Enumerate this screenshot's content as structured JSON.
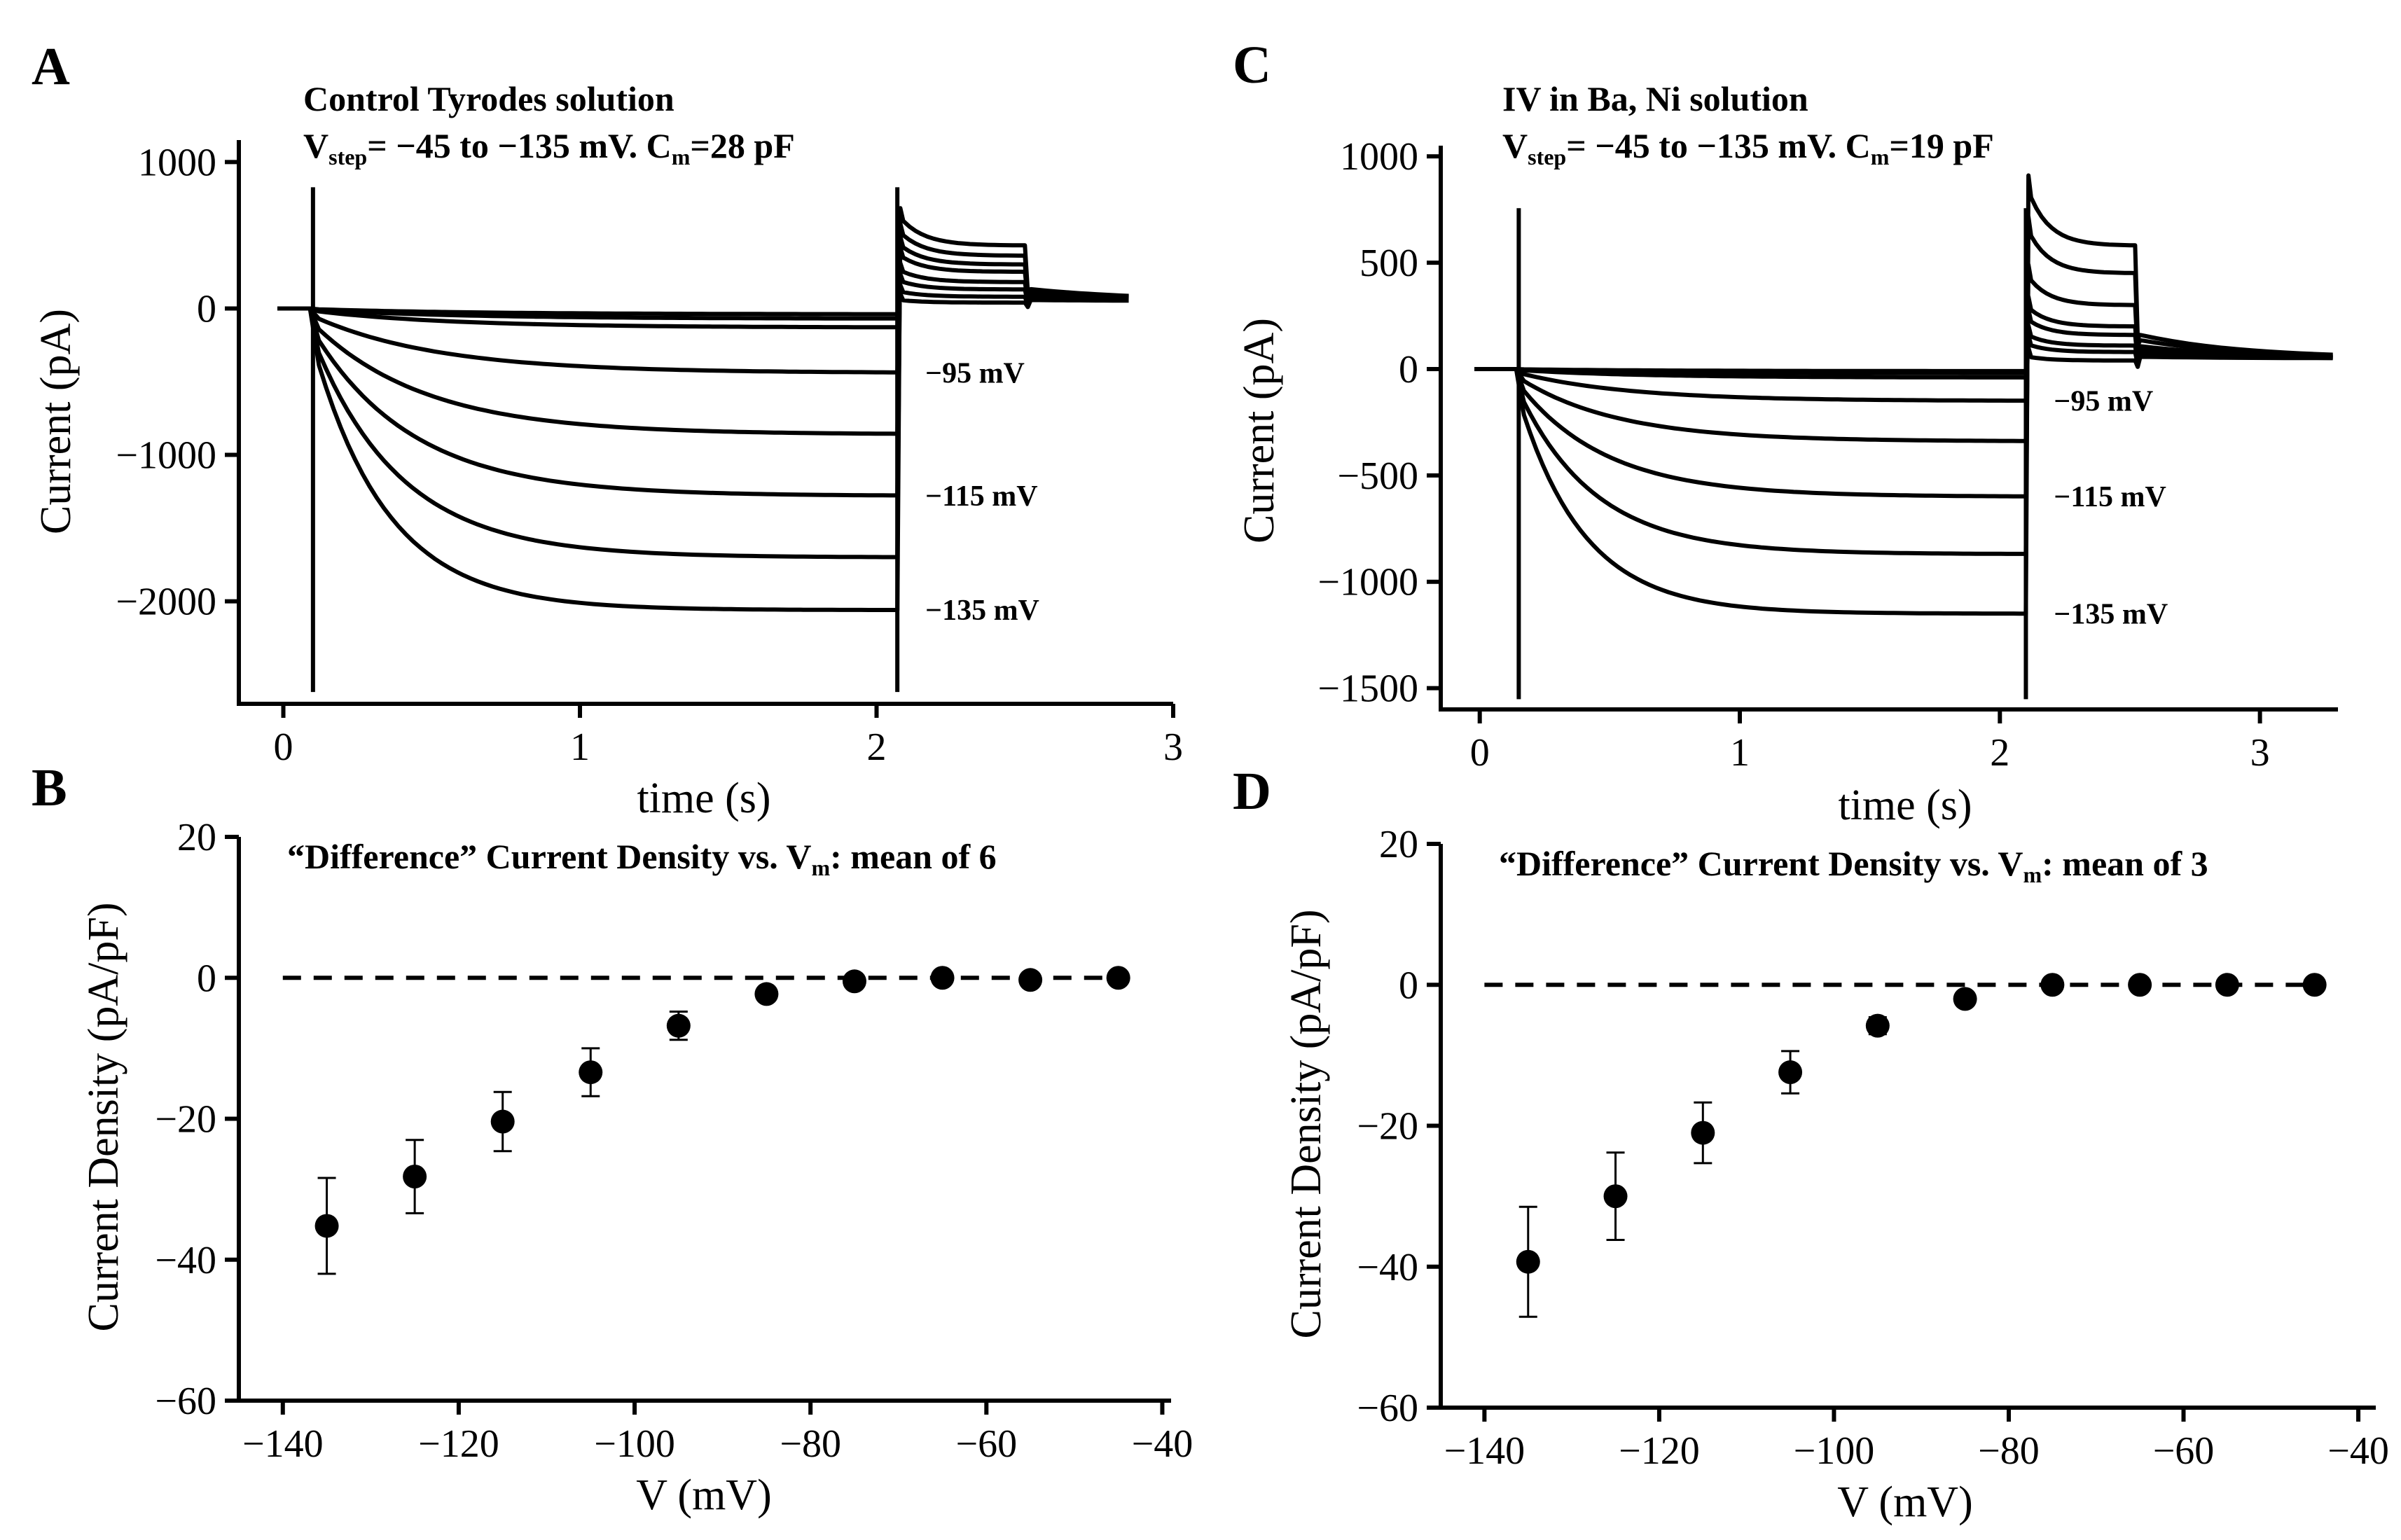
{
  "chart_data": [
    {
      "panel": "A",
      "type": "line",
      "title_line1": "Control Tyrodes solution",
      "title_line2": {
        "v": "V",
        "v_sub": "step",
        "mid": "= −45 to −135 mV. C",
        "c_sub": "m",
        "end": "=28 pF"
      },
      "xlabel": "time (s)",
      "ylabel": "Current (pA)",
      "xlim": [
        -0.15,
        3.0
      ],
      "ylim": [
        -2700,
        1150
      ],
      "xticks": [
        0,
        1,
        2,
        3
      ],
      "yticks": [
        1000,
        0,
        -1000,
        -2000
      ],
      "step_start": 0.1,
      "step_end": 2.07,
      "tail_end": 2.5,
      "trace_end": 2.85,
      "steady_values": [
        -40,
        -70,
        -130,
        -440,
        -860,
        -1280,
        -1700,
        -2060
      ],
      "tail_values": [
        40,
        80,
        130,
        180,
        250,
        300,
        360,
        430
      ],
      "trace_labels": [
        {
          "text": "−95 mV",
          "value": -440
        },
        {
          "text": "−115 mV",
          "value": -1280
        },
        {
          "text": "−135 mV",
          "value": -2060
        }
      ]
    },
    {
      "panel": "C",
      "type": "line",
      "title_line1": "IV in Ba, Ni solution",
      "title_line2": {
        "v": "V",
        "v_sub": "step",
        "mid": "= −45 to −135 mV. C",
        "c_sub": "m",
        "end": "=19 pF"
      },
      "xlabel": "time (s)",
      "ylabel": "Current (pA)",
      "xlim": [
        -0.15,
        3.3
      ],
      "ylim": [
        -1600,
        1050
      ],
      "xticks": [
        0,
        1,
        2,
        3
      ],
      "yticks": [
        1000,
        500,
        0,
        -500,
        -1000,
        -1500
      ],
      "step_start": 0.15,
      "step_end": 2.1,
      "tail_end": 2.52,
      "trace_end": 3.28,
      "steady_values": [
        -10,
        -20,
        -40,
        -150,
        -340,
        -600,
        -870,
        -1150
      ],
      "tail_values": [
        40,
        80,
        110,
        160,
        200,
        300,
        450,
        580
      ],
      "trace_labels": [
        {
          "text": "−95 mV",
          "value": -150
        },
        {
          "text": "−115 mV",
          "value": -600
        },
        {
          "text": "−135 mV",
          "value": -1150
        }
      ]
    },
    {
      "panel": "B",
      "type": "scatter",
      "title": {
        "text1": "“Difference” Current Density vs. V",
        "sub": "m",
        "text2": ": mean of 6"
      },
      "xlabel": "V (mV)",
      "ylabel": "Current Density (pA/pF)",
      "xlim": [
        -145,
        -39
      ],
      "ylim": [
        -60,
        20
      ],
      "xticks": [
        -140,
        -120,
        -100,
        -80,
        -60,
        -40
      ],
      "yticks": [
        20,
        0,
        -20,
        -40,
        -60
      ],
      "zero_line": [
        -140,
        -44
      ],
      "x": [
        -135,
        -125,
        -115,
        -105,
        -95,
        -85,
        -75,
        -65,
        -55,
        -45
      ],
      "y": [
        -35.2,
        -28.2,
        -20.4,
        -13.4,
        -6.8,
        -2.3,
        -0.5,
        0,
        -0.3,
        0
      ],
      "err": [
        6.8,
        5.2,
        4.2,
        3.4,
        2.0,
        0,
        0,
        0,
        0,
        0
      ]
    },
    {
      "panel": "D",
      "type": "scatter",
      "title": {
        "text1": "“Difference” Current Density vs. V",
        "sub": "m",
        "text2": ": mean of 3"
      },
      "xlabel": "V (mV)",
      "ylabel": "Current Density (pA/pF)",
      "xlim": [
        -145,
        -38
      ],
      "ylim": [
        -60,
        20
      ],
      "xticks": [
        -140,
        -120,
        -100,
        -80,
        -60,
        -40
      ],
      "yticks": [
        20,
        0,
        -20,
        -40,
        -60
      ],
      "zero_line": [
        -140,
        -44
      ],
      "x": [
        -135,
        -125,
        -115,
        -105,
        -95,
        -85,
        -75,
        -65,
        -55,
        -45
      ],
      "y": [
        -39.3,
        -30.0,
        -21.0,
        -12.4,
        -5.8,
        -2.0,
        0,
        0,
        0,
        0
      ],
      "err": [
        7.8,
        6.2,
        4.3,
        3.0,
        1.2,
        0,
        0,
        0,
        0,
        0
      ]
    }
  ]
}
